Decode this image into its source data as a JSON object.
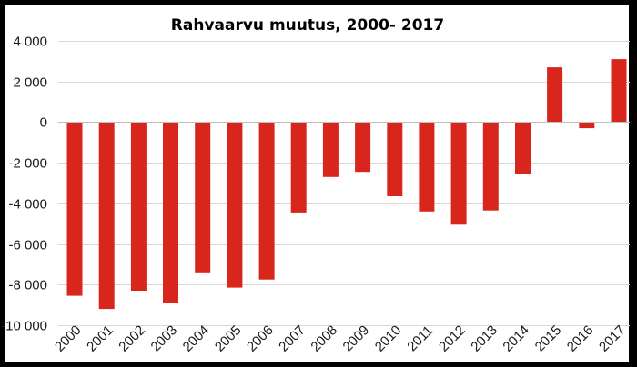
{
  "chart_data": {
    "type": "bar",
    "title": "Rahvaarvu muutus, 2000- 2017",
    "xlabel": "",
    "ylabel": "",
    "ylim": [
      -10000,
      4000
    ],
    "yticks": [
      4000,
      2000,
      0,
      -2000,
      -4000,
      -6000,
      -8000,
      -10000
    ],
    "ytick_labels": [
      "4 000",
      "2 000",
      "0",
      "-2 000",
      "-4 000",
      "-6 000",
      "-8 000",
      "-10 000"
    ],
    "grid": true,
    "legend": "none",
    "bar_color": "#d9261c",
    "categories": [
      "2000",
      "2001",
      "2002",
      "2003",
      "2004",
      "2005",
      "2006",
      "2007",
      "2008",
      "2009",
      "2010",
      "2011",
      "2012",
      "2013",
      "2014",
      "2015",
      "2016",
      "2017"
    ],
    "values": [
      -8550,
      -9200,
      -8300,
      -8900,
      -7400,
      -8150,
      -7750,
      -4450,
      -2700,
      -2450,
      -3650,
      -4400,
      -5050,
      -4350,
      -2550,
      2700,
      -300,
      3100
    ]
  }
}
